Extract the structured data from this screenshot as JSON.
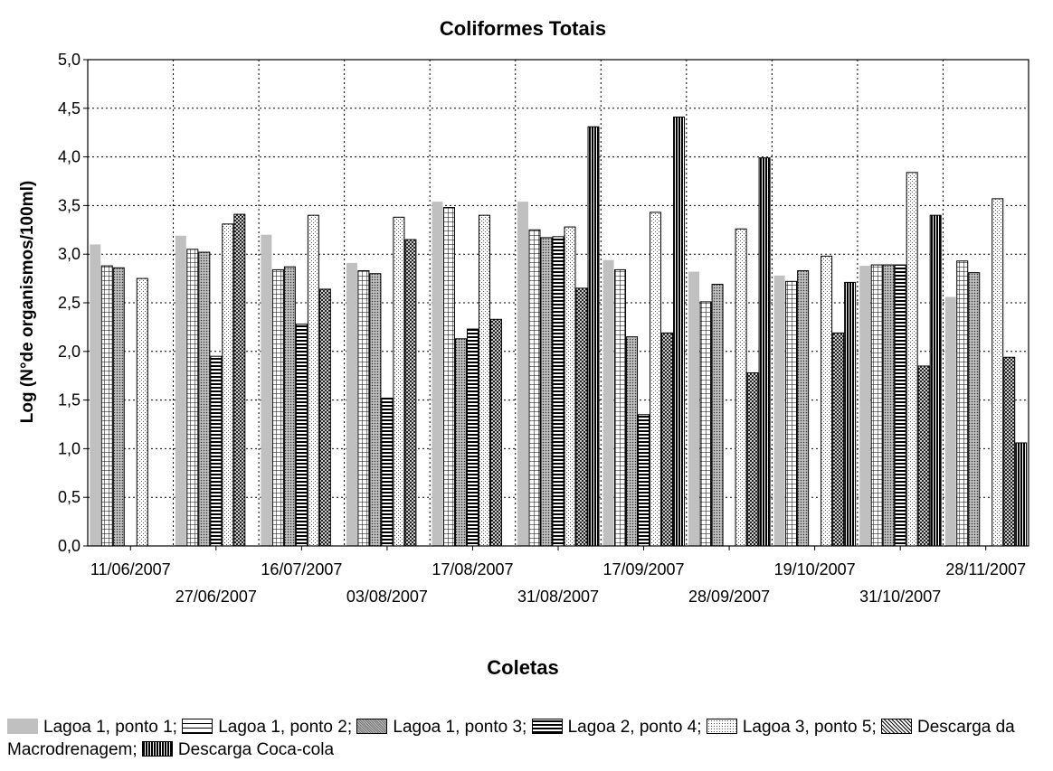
{
  "chart_data": {
    "type": "bar",
    "title": "Coliformes Totais",
    "xlabel": "Coletas",
    "ylabel": "Log (N°de organismos/100ml)",
    "ylim": [
      0,
      5.0
    ],
    "yticks": [
      "0,0",
      "0,5",
      "1,0",
      "1,5",
      "2,0",
      "2,5",
      "3,0",
      "3,5",
      "4,0",
      "4,5",
      "5,0"
    ],
    "grid": true,
    "legend_placement": "bottom",
    "categories": [
      "11/06/2007",
      "27/06/2007",
      "16/07/2007",
      "03/08/2007",
      "17/08/2007",
      "31/08/2007",
      "17/09/2007",
      "28/09/2007",
      "19/10/2007",
      "31/10/2007",
      "28/11/2007"
    ],
    "series": [
      {
        "name": "Lagoa 1, ponto 1;",
        "pattern": "solid-gray",
        "color": "#c0c0c0",
        "values": [
          3.1,
          3.19,
          3.2,
          2.91,
          3.54,
          3.54,
          2.94,
          2.82,
          2.78,
          2.88,
          2.56
        ]
      },
      {
        "name": "Lagoa 1, ponto 2;",
        "pattern": "grid",
        "color": "#000000",
        "values": [
          2.88,
          3.05,
          2.84,
          2.83,
          3.48,
          3.25,
          2.84,
          2.51,
          2.72,
          2.89,
          2.93
        ]
      },
      {
        "name": "Lagoa 1, ponto 3;",
        "pattern": "fine-dots",
        "color": "#808080",
        "values": [
          2.86,
          3.02,
          2.87,
          2.8,
          2.13,
          3.17,
          2.15,
          2.69,
          2.83,
          2.89,
          2.81
        ]
      },
      {
        "name": "Lagoa 2, ponto 4;",
        "pattern": "horizontal-lines",
        "color": "#000000",
        "values": [
          null,
          1.95,
          2.28,
          1.52,
          2.23,
          3.18,
          1.35,
          null,
          null,
          2.89,
          null
        ]
      },
      {
        "name": "Lagoa 3, ponto 5;",
        "pattern": "sparse-dots",
        "color": "#ffffff",
        "values": [
          2.75,
          3.31,
          3.4,
          3.38,
          3.4,
          3.28,
          3.43,
          3.26,
          2.98,
          3.84,
          3.57
        ]
      },
      {
        "name": "Descarga da Macrodrenagem;",
        "pattern": "crosshatch",
        "color": "#000000",
        "values": [
          null,
          3.41,
          2.64,
          3.15,
          2.33,
          2.65,
          2.19,
          1.78,
          2.19,
          1.85,
          1.94
        ]
      },
      {
        "name": "Descarga Coca-cola",
        "pattern": "vertical-lines",
        "color": "#000000",
        "values": [
          null,
          null,
          null,
          null,
          null,
          4.31,
          4.41,
          3.99,
          2.71,
          3.4,
          1.06
        ]
      }
    ]
  }
}
